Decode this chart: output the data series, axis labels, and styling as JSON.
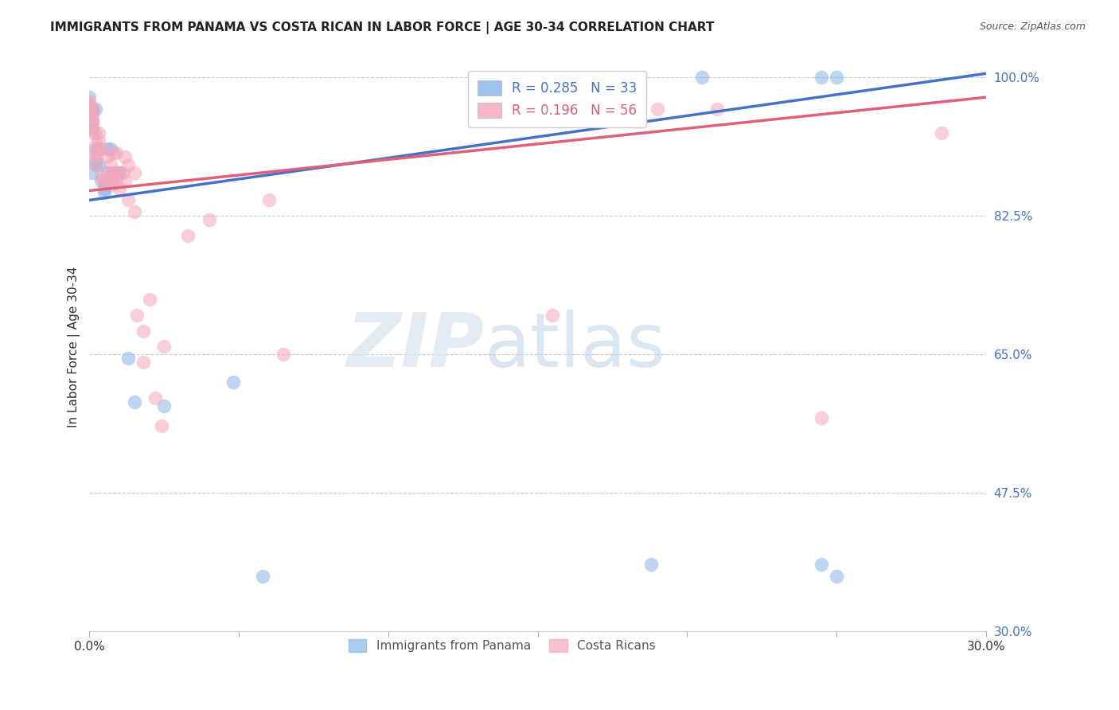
{
  "title": "IMMIGRANTS FROM PANAMA VS COSTA RICAN IN LABOR FORCE | AGE 30-34 CORRELATION CHART",
  "source": "Source: ZipAtlas.com",
  "ylabel": "In Labor Force | Age 30-34",
  "xlim": [
    0.0,
    0.3
  ],
  "ylim": [
    0.3,
    1.02
  ],
  "xticks": [
    0.0,
    0.05,
    0.1,
    0.15,
    0.2,
    0.25,
    0.3
  ],
  "xtick_labels": [
    "0.0%",
    "",
    "",
    "",
    "",
    "",
    "30.0%"
  ],
  "ytick_labels_right": [
    "100.0%",
    "82.5%",
    "65.0%",
    "47.5%",
    "30.0%"
  ],
  "ytick_vals_right": [
    1.0,
    0.825,
    0.65,
    0.475,
    0.3
  ],
  "hlines": [
    1.0,
    0.825,
    0.65,
    0.475,
    0.3
  ],
  "panama_color": "#85b5e8",
  "costa_rica_color": "#f4a7b9",
  "panama_line_color": "#4472c4",
  "costa_rica_line_color": "#e0607a",
  "R_panama": 0.285,
  "N_panama": 33,
  "R_costa_rica": 0.196,
  "N_costa_rica": 56,
  "panama_line_x": [
    0.0,
    0.3
  ],
  "panama_line_y": [
    0.845,
    1.005
  ],
  "costa_rica_line_x": [
    0.0,
    0.3
  ],
  "costa_rica_line_y": [
    0.857,
    0.975
  ],
  "panama_x": [
    0.0,
    0.0,
    0.001,
    0.001,
    0.001,
    0.001,
    0.002,
    0.002,
    0.002,
    0.002,
    0.003,
    0.003,
    0.004,
    0.005,
    0.005,
    0.006,
    0.006,
    0.007,
    0.008,
    0.008,
    0.009,
    0.01,
    0.013,
    0.015,
    0.025,
    0.048,
    0.058,
    0.188,
    0.205,
    0.245,
    0.245,
    0.25,
    0.25
  ],
  "panama_y": [
    0.975,
    0.955,
    0.96,
    0.945,
    0.935,
    0.88,
    0.96,
    0.91,
    0.895,
    0.89,
    0.91,
    0.89,
    0.87,
    0.86,
    0.855,
    0.91,
    0.88,
    0.91,
    0.88,
    0.87,
    0.88,
    0.88,
    0.645,
    0.59,
    0.585,
    0.615,
    0.37,
    0.385,
    1.0,
    1.0,
    0.385,
    0.37,
    1.0
  ],
  "costa_rica_x": [
    0.0,
    0.0,
    0.0,
    0.001,
    0.001,
    0.001,
    0.001,
    0.001,
    0.001,
    0.002,
    0.002,
    0.002,
    0.002,
    0.002,
    0.003,
    0.003,
    0.003,
    0.004,
    0.004,
    0.005,
    0.005,
    0.006,
    0.006,
    0.007,
    0.007,
    0.008,
    0.008,
    0.008,
    0.009,
    0.009,
    0.009,
    0.01,
    0.01,
    0.011,
    0.012,
    0.012,
    0.013,
    0.013,
    0.015,
    0.015,
    0.016,
    0.018,
    0.018,
    0.02,
    0.022,
    0.024,
    0.025,
    0.033,
    0.04,
    0.06,
    0.065,
    0.155,
    0.19,
    0.21,
    0.245,
    0.285
  ],
  "costa_rica_y": [
    0.97,
    0.965,
    0.96,
    0.96,
    0.955,
    0.95,
    0.945,
    0.94,
    0.93,
    0.93,
    0.915,
    0.905,
    0.9,
    0.89,
    0.93,
    0.92,
    0.91,
    0.91,
    0.875,
    0.87,
    0.865,
    0.9,
    0.88,
    0.89,
    0.87,
    0.905,
    0.875,
    0.865,
    0.905,
    0.88,
    0.87,
    0.88,
    0.86,
    0.88,
    0.9,
    0.87,
    0.89,
    0.845,
    0.88,
    0.83,
    0.7,
    0.68,
    0.64,
    0.72,
    0.595,
    0.56,
    0.66,
    0.8,
    0.82,
    0.845,
    0.65,
    0.7,
    0.96,
    0.96,
    0.57,
    0.93
  ],
  "background_color": "#ffffff",
  "grid_color": "#cccccc",
  "watermark_zip": "ZIP",
  "watermark_atlas": "atlas",
  "title_fontsize": 11,
  "source_fontsize": 9,
  "axis_label_fontsize": 11,
  "tick_fontsize": 11,
  "legend_fontsize": 12
}
